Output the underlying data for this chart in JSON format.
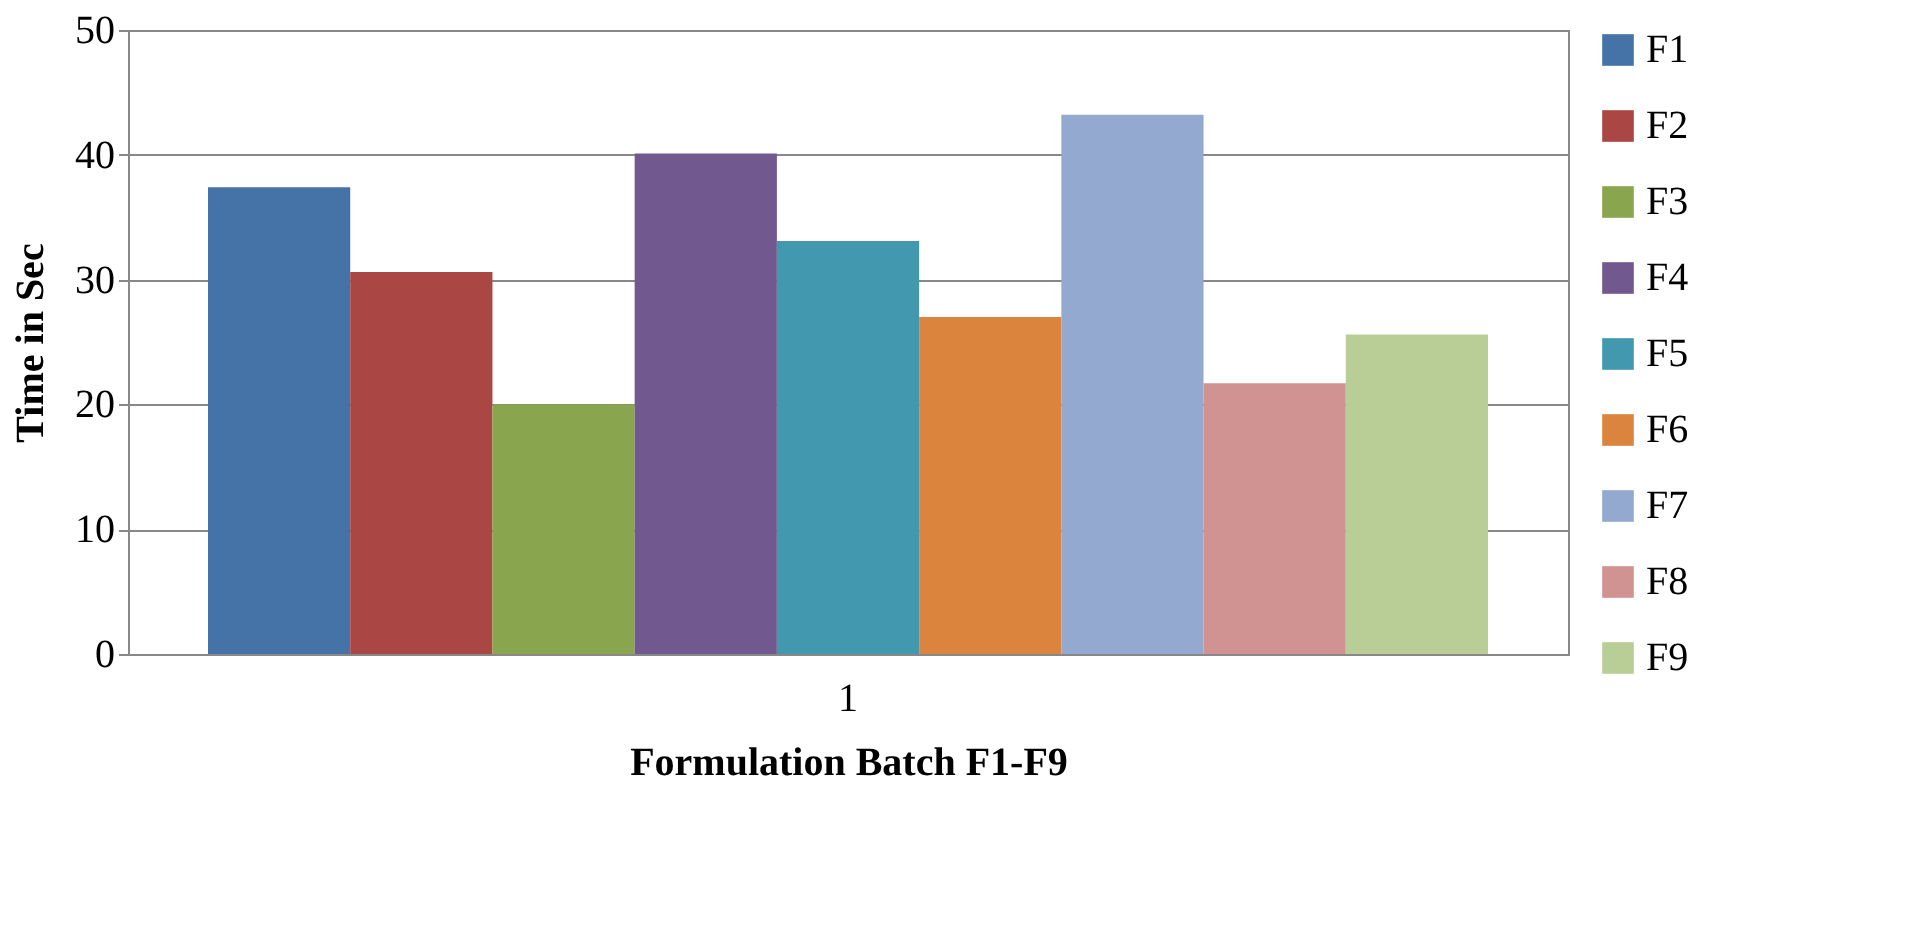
{
  "chart_data": {
    "type": "bar",
    "categories": [
      "1"
    ],
    "xlabel": "Formulation Batch F1-F9",
    "ylabel": "Time in Sec",
    "ylim": [
      0,
      50
    ],
    "yticks": [
      0,
      10,
      20,
      30,
      40,
      50
    ],
    "grid": "y",
    "legend": "right",
    "series": [
      {
        "name": "F1",
        "color": "#4572a7",
        "values": [
          37.4
        ]
      },
      {
        "name": "F2",
        "color": "#aa4643",
        "values": [
          30.6
        ]
      },
      {
        "name": "F3",
        "color": "#89a54e",
        "values": [
          20.0
        ]
      },
      {
        "name": "F4",
        "color": "#71588f",
        "values": [
          40.1
        ]
      },
      {
        "name": "F5",
        "color": "#4198af",
        "values": [
          33.1
        ]
      },
      {
        "name": "F6",
        "color": "#db843d",
        "values": [
          27.0
        ]
      },
      {
        "name": "F7",
        "color": "#93a9cf",
        "values": [
          43.2
        ]
      },
      {
        "name": "F8",
        "color": "#d19392",
        "values": [
          21.7
        ]
      },
      {
        "name": "F9",
        "color": "#b9cd96",
        "values": [
          25.6
        ]
      }
    ]
  }
}
